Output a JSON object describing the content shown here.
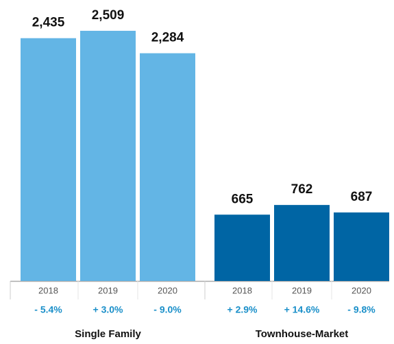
{
  "chart_data": {
    "type": "bar",
    "groups": [
      {
        "name": "Single Family",
        "color": "#63b5e5",
        "categories": [
          "2018",
          "2019",
          "2020"
        ],
        "values": [
          2435,
          2509,
          2284
        ],
        "value_labels": [
          "2,435",
          "2,509",
          "2,284"
        ],
        "change_labels": [
          "- 5.4%",
          "+ 3.0%",
          "- 9.0%"
        ]
      },
      {
        "name": "Townhouse-Market",
        "color": "#0065a4",
        "categories": [
          "2018",
          "2019",
          "2020"
        ],
        "values": [
          665,
          762,
          687
        ],
        "value_labels": [
          "665",
          "762",
          "687"
        ],
        "change_labels": [
          "+ 2.9%",
          "+ 14.6%",
          "- 9.8%"
        ]
      }
    ]
  }
}
